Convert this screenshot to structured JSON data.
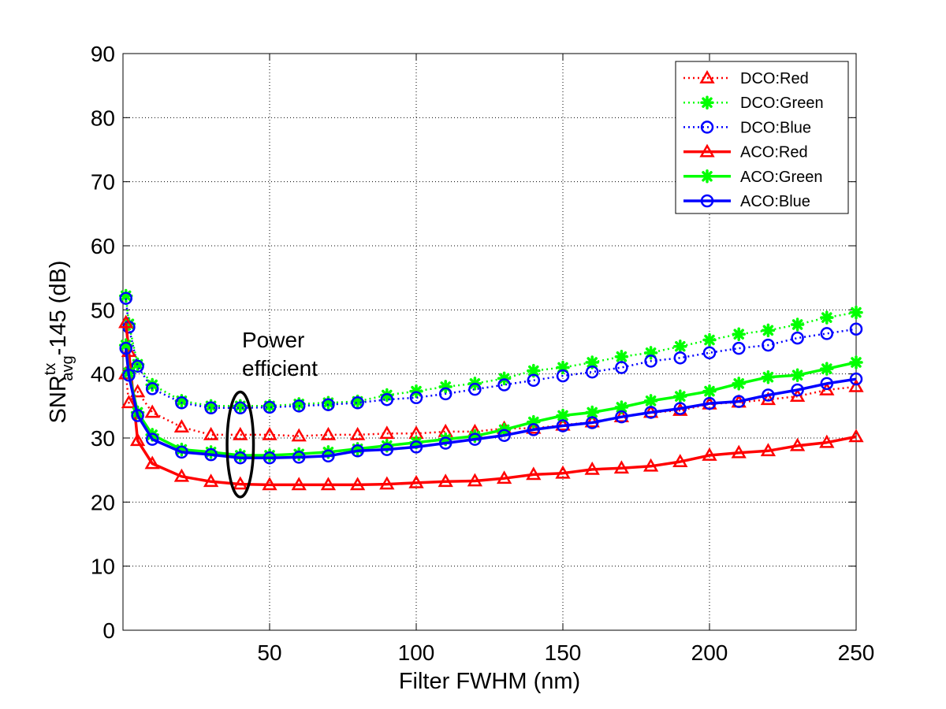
{
  "chart_data": {
    "type": "line",
    "xlabel": "Filter FWHM (nm)",
    "ylabel": {
      "main": "SNR",
      "superscript": "tx",
      "subscript": "avg",
      "suffix": "-145 (dB)"
    },
    "xlim": [
      0,
      250
    ],
    "ylim": [
      0,
      90
    ],
    "xticks": [
      50,
      100,
      150,
      200,
      250
    ],
    "yticks": [
      0,
      10,
      20,
      30,
      40,
      50,
      60,
      70,
      80,
      90
    ],
    "grid": true,
    "legend_position": "top-right",
    "annotation": {
      "lines": [
        "Power",
        "efficient"
      ],
      "ellipse_center": [
        40,
        29
      ],
      "ellipse_radii": [
        4.5,
        8.2
      ]
    },
    "x": [
      1,
      2,
      5,
      10,
      20,
      30,
      40,
      50,
      60,
      70,
      80,
      90,
      100,
      110,
      120,
      130,
      140,
      150,
      160,
      170,
      180,
      190,
      200,
      210,
      220,
      230,
      240,
      250
    ],
    "series": [
      {
        "name": "DCO:Red",
        "color": "#ff0000",
        "style": "dotted",
        "marker": "triangle",
        "values": [
          40.0,
          35.5,
          37.2,
          34.0,
          31.7,
          30.5,
          30.5,
          30.5,
          30.3,
          30.5,
          30.5,
          30.7,
          30.7,
          31.0,
          31.0,
          31.5,
          31.5,
          32.0,
          32.5,
          33.3,
          34.0,
          34.3,
          35.3,
          35.6,
          36.0,
          36.5,
          37.5,
          38.0
        ]
      },
      {
        "name": "DCO:Green",
        "color": "#00ff00",
        "style": "dotted",
        "marker": "star",
        "values": [
          52.2,
          47.8,
          41.5,
          38.3,
          35.8,
          35.0,
          35.0,
          35.0,
          35.3,
          35.5,
          35.7,
          36.7,
          37.3,
          38.0,
          38.5,
          39.3,
          40.5,
          41.0,
          41.8,
          42.7,
          43.3,
          44.3,
          45.3,
          46.2,
          46.8,
          47.7,
          48.8,
          49.6
        ]
      },
      {
        "name": "DCO:Blue",
        "color": "#0000ff",
        "style": "dotted",
        "marker": "circle",
        "values": [
          51.8,
          47.3,
          41.2,
          37.7,
          35.5,
          34.7,
          34.7,
          34.8,
          35.0,
          35.2,
          35.5,
          36.0,
          36.3,
          36.9,
          37.6,
          38.3,
          39.0,
          39.7,
          40.3,
          41.0,
          42.0,
          42.5,
          43.3,
          44.0,
          44.5,
          45.6,
          46.3,
          47.0
        ]
      },
      {
        "name": "ACO:Red",
        "color": "#ff0000",
        "style": "solid",
        "marker": "triangle",
        "values": [
          48.0,
          43.5,
          29.6,
          26.0,
          24.0,
          23.2,
          22.8,
          22.7,
          22.7,
          22.7,
          22.7,
          22.8,
          23.0,
          23.2,
          23.3,
          23.7,
          24.3,
          24.5,
          25.1,
          25.3,
          25.6,
          26.3,
          27.3,
          27.7,
          28.0,
          28.8,
          29.3,
          30.2
        ]
      },
      {
        "name": "ACO:Green",
        "color": "#00ff00",
        "style": "solid",
        "marker": "star",
        "values": [
          44.5,
          40.2,
          34.0,
          30.5,
          28.2,
          27.8,
          27.3,
          27.3,
          27.5,
          27.8,
          28.3,
          28.8,
          29.3,
          29.8,
          30.3,
          31.3,
          32.5,
          33.5,
          34.0,
          34.8,
          35.8,
          36.5,
          37.3,
          38.5,
          39.5,
          39.8,
          40.8,
          41.8
        ]
      },
      {
        "name": "ACO:Blue",
        "color": "#0000ff",
        "style": "solid",
        "marker": "circle",
        "values": [
          44.0,
          39.8,
          33.5,
          29.8,
          27.8,
          27.4,
          26.9,
          26.9,
          27.0,
          27.2,
          28.0,
          28.2,
          28.6,
          29.2,
          29.8,
          30.4,
          31.3,
          31.9,
          32.4,
          33.3,
          34.0,
          34.6,
          35.4,
          35.7,
          36.7,
          37.5,
          38.5,
          39.2
        ]
      }
    ]
  }
}
